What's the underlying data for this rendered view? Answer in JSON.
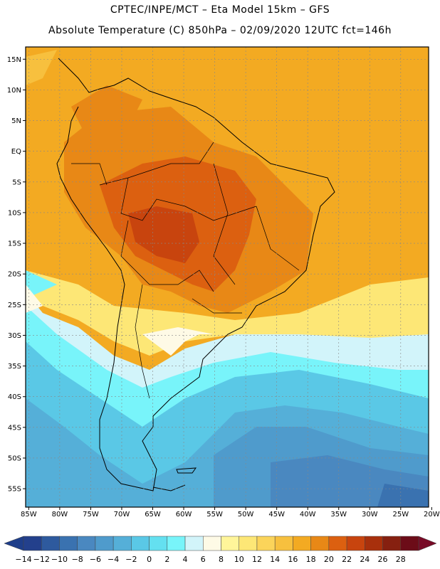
{
  "header": {
    "line1": "CPTEC/INPE/MCT –  Eta Model 15km – GFS",
    "line2": "Absolute Temperature (C) 850hPa – 02/09/2020 12UTC fct=146h"
  },
  "map": {
    "lat_labels": [
      "15N",
      "10N",
      "5N",
      "EQ",
      "5S",
      "10S",
      "15S",
      "20S",
      "25S",
      "30S",
      "35S",
      "40S",
      "45S",
      "50S",
      "55S"
    ],
    "lon_labels": [
      "85W",
      "80W",
      "75W",
      "70W",
      "65W",
      "60W",
      "55W",
      "50W",
      "45W",
      "40W",
      "35W",
      "30W",
      "25W",
      "20W"
    ],
    "lat_values": [
      15,
      10,
      5,
      0,
      -5,
      -10,
      -15,
      -20,
      -25,
      -30,
      -35,
      -40,
      -45,
      -50,
      -55
    ],
    "lon_values": [
      -85,
      -80,
      -75,
      -70,
      -65,
      -60,
      -55,
      -50,
      -45,
      -40,
      -35,
      -30,
      -25,
      -20
    ],
    "extent": {
      "lon_min": -85.5,
      "lon_max": -20.5,
      "lat_min": -58,
      "lat_max": 17
    }
  },
  "colorbar": {
    "labels": [
      "-14",
      "-12",
      "-10",
      "-8",
      "-6",
      "-4",
      "-2",
      "0",
      "2",
      "4",
      "6",
      "8",
      "10",
      "12",
      "14",
      "16",
      "18",
      "20",
      "22",
      "24",
      "26",
      "28"
    ],
    "colors": [
      "#23408c",
      "#2e5a9e",
      "#3a72b0",
      "#4a88c0",
      "#4f9bcc",
      "#55afd8",
      "#5ac8e6",
      "#64e0f0",
      "#78f4fa",
      "#d2f4fa",
      "#fefae6",
      "#fff59a",
      "#fde776",
      "#fbd45a",
      "#f7c03e",
      "#f3aa22",
      "#e88816",
      "#dc6010",
      "#c8440e",
      "#a8300c",
      "#862010",
      "#6c0c18"
    ],
    "arrow_low": "#1e3e8a",
    "arrow_high": "#780a26"
  }
}
